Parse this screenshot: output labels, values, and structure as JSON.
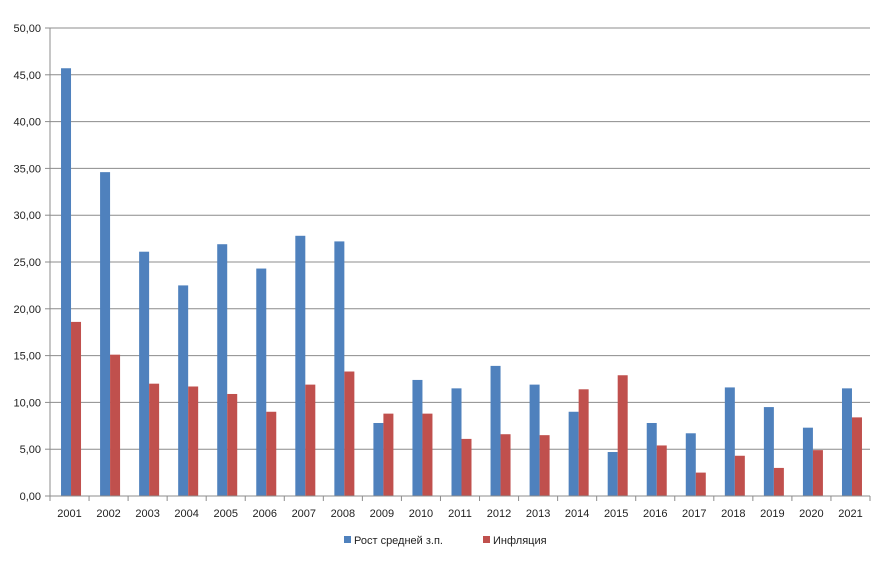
{
  "chart_data": {
    "type": "bar",
    "categories": [
      "2001",
      "2002",
      "2003",
      "2004",
      "2005",
      "2006",
      "2007",
      "2008",
      "2009",
      "2010",
      "2011",
      "2012",
      "2013",
      "2014",
      "2015",
      "2016",
      "2017",
      "2018",
      "2019",
      "2020",
      "2021"
    ],
    "series": [
      {
        "name": "Рост средней з.п.",
        "color": "#4F81BD",
        "values": [
          45.7,
          34.6,
          26.1,
          22.5,
          26.9,
          24.3,
          27.8,
          27.2,
          7.8,
          12.4,
          11.5,
          13.9,
          11.9,
          9.0,
          4.7,
          7.8,
          6.7,
          11.6,
          9.5,
          7.3,
          11.5
        ]
      },
      {
        "name": "Инфляция",
        "color": "#C0504D",
        "values": [
          18.6,
          15.1,
          12.0,
          11.7,
          10.9,
          9.0,
          11.9,
          13.3,
          8.8,
          8.8,
          6.1,
          6.6,
          6.5,
          11.4,
          12.9,
          5.4,
          2.5,
          4.3,
          3.0,
          4.9,
          8.4
        ]
      }
    ],
    "yticks": [
      "0,00",
      "5,00",
      "10,00",
      "15,00",
      "20,00",
      "25,00",
      "30,00",
      "35,00",
      "40,00",
      "45,00",
      "50,00"
    ],
    "ylim": [
      0,
      50
    ],
    "grid": true,
    "legend_position": "bottom",
    "title": "",
    "xlabel": "",
    "ylabel": ""
  }
}
